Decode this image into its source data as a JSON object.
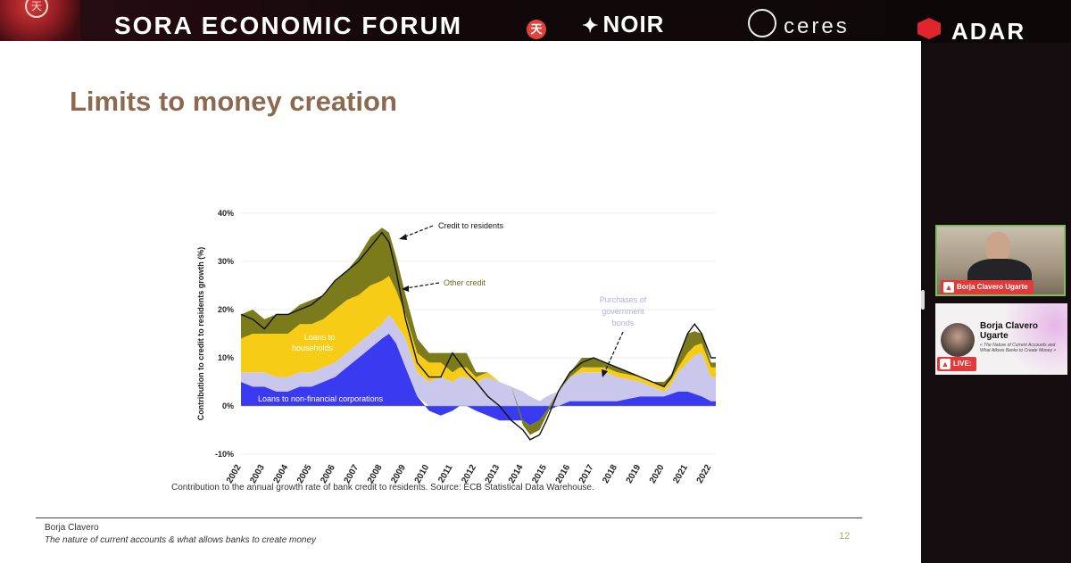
{
  "banner": {
    "forum_title": "SORA ECONOMIC FORUM",
    "sora_mark": "天",
    "sponsor_noir": "NOIR",
    "sponsor_ceres": "ceres",
    "sponsor_adar": "ADAR"
  },
  "slide": {
    "title": "Limits to money creation",
    "caption": "Contribution to the annual growth rate of bank credit to residents. Source: ECB Statistical Data Warehouse.",
    "author": "Borja Clavero",
    "subtitle": "The nature of current accounts & what allows banks to create money",
    "page_number": "12"
  },
  "chart_data": {
    "type": "area",
    "ylabel": "Contribution to credit to residents growth (%)",
    "ylim": [
      -10,
      40
    ],
    "yticks": [
      "40%",
      "30%",
      "20%",
      "10%",
      "0%",
      "-10%"
    ],
    "ytick_values": [
      40,
      30,
      20,
      10,
      0,
      -10
    ],
    "xticks": [
      "2002",
      "2003",
      "2004",
      "2005",
      "2006",
      "2007",
      "2008",
      "2009",
      "2010",
      "2011",
      "2012",
      "2013",
      "2014",
      "2015",
      "2016",
      "2017",
      "2018",
      "2019",
      "2020",
      "2021",
      "2022"
    ],
    "x": [
      2002.0,
      2002.5,
      2003.0,
      2003.5,
      2004.0,
      2004.5,
      2005.0,
      2005.5,
      2006.0,
      2006.5,
      2007.0,
      2007.5,
      2008.0,
      2008.3,
      2008.6,
      2009.0,
      2009.5,
      2010.0,
      2010.5,
      2011.0,
      2011.3,
      2011.6,
      2012.0,
      2012.5,
      2013.0,
      2013.5,
      2014.0,
      2014.3,
      2014.7,
      2015.0,
      2015.5,
      2016.0,
      2016.5,
      2017.0,
      2017.5,
      2018.0,
      2018.5,
      2019.0,
      2019.5,
      2020.0,
      2020.3,
      2020.6,
      2021.0,
      2021.3,
      2021.6,
      2022.0,
      2022.2
    ],
    "series": [
      {
        "name": "Loans to non-financial corporations",
        "color": "#3a3af0",
        "values": [
          5,
          4,
          4,
          3,
          3,
          4,
          4,
          5,
          6,
          8,
          10,
          12,
          14,
          15,
          13,
          8,
          2,
          -1,
          -2,
          -1,
          0,
          0,
          -1,
          -2,
          -3,
          -3,
          -3,
          -4,
          -3,
          -1,
          0,
          1,
          1,
          1,
          1,
          1,
          1.5,
          2,
          2,
          2,
          2.5,
          3,
          3,
          2.5,
          2,
          1,
          1
        ]
      },
      {
        "name": "Purchases of government bonds",
        "color": "#c9c8ec",
        "values": [
          2,
          3,
          3,
          3,
          3,
          3,
          3,
          3,
          3,
          3,
          3,
          3,
          3,
          4,
          4,
          6,
          5,
          5,
          6,
          5,
          6,
          6,
          5,
          6,
          5,
          4,
          3,
          2,
          1,
          2,
          3,
          5,
          6,
          6,
          6,
          5,
          4,
          3,
          2,
          1,
          2,
          4,
          6,
          8,
          9,
          5,
          5
        ]
      },
      {
        "name": "Loans to households",
        "color": "#f7cc16",
        "values": [
          7,
          8,
          8,
          9,
          9,
          10,
          10,
          10,
          11,
          11,
          10,
          10,
          9,
          8,
          7,
          5,
          4,
          4,
          3,
          2,
          2,
          2,
          1,
          1,
          0,
          0,
          0,
          0,
          0,
          0,
          0,
          0,
          1,
          1,
          1,
          1,
          1,
          1,
          1,
          1,
          1,
          1,
          2,
          2,
          2,
          2,
          2
        ]
      },
      {
        "name": "Other credit",
        "color": "#7b7b1b",
        "values": [
          5,
          5,
          3,
          4,
          4,
          4,
          5,
          5,
          6,
          6,
          8,
          10,
          11,
          9,
          7,
          4,
          3,
          2,
          2,
          4,
          3,
          3,
          1,
          0,
          0,
          0,
          -1,
          -2,
          -2,
          -1,
          0,
          1,
          2,
          2,
          1,
          1,
          0.5,
          0,
          0,
          1,
          1,
          2,
          4,
          3,
          2,
          1,
          1
        ]
      },
      {
        "name": "Credit to residents",
        "color": "#111111",
        "values": [
          19,
          18,
          16,
          19,
          19,
          20,
          21,
          23,
          26,
          28,
          30,
          33,
          36,
          34,
          28,
          18,
          9,
          6,
          6,
          11,
          9,
          7,
          5,
          2,
          0,
          -3,
          -5,
          -7,
          -6,
          -3,
          3,
          7,
          9,
          10,
          9,
          8,
          7,
          6,
          5,
          4,
          6,
          10,
          15,
          17,
          15,
          10,
          10
        ]
      }
    ],
    "annotations": [
      {
        "text": "Credit to residents",
        "color": "#111111"
      },
      {
        "text": "Other credit",
        "color": "#6e6e18"
      },
      {
        "text": "Purchases of government bonds",
        "color": "#b0aee0"
      },
      {
        "text": "Loans to households",
        "color": "#ffffff"
      },
      {
        "text": "Loans to non-financial corporations",
        "color": "#ffffff"
      }
    ],
    "grid": true,
    "legend": "none"
  },
  "participants": [
    {
      "name": "Borja Clavero Ugarte",
      "badge": "Borja Clavero Ugarte"
    },
    {
      "name": "Borja Clavero Ugarte",
      "talk": "« The Nature of Current Accounts and What Allows Banks to Create Money »",
      "status": "LIVE:"
    }
  ]
}
